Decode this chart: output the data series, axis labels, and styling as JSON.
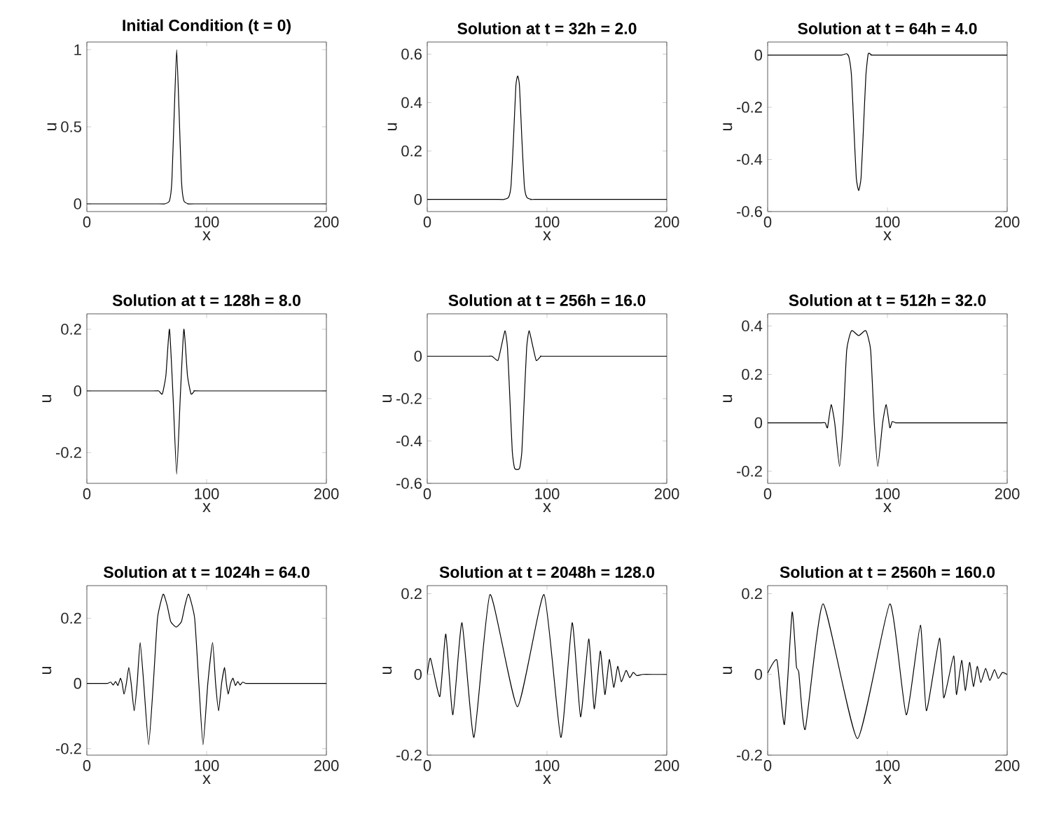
{
  "chart_data": [
    {
      "type": "line",
      "title": "Initial Condition (t = 0)",
      "xlabel": "x",
      "ylabel": "u",
      "color": "#000000",
      "xlim": [
        0,
        200
      ],
      "ylim": [
        -0.05,
        1.05
      ],
      "xticks": [
        0,
        100,
        200
      ],
      "yticks": [
        0,
        0.5,
        1
      ],
      "x": [
        0,
        60,
        65,
        69,
        71,
        73,
        75,
        77,
        79,
        81,
        85,
        90,
        200
      ],
      "values": [
        0,
        0,
        0,
        0.02,
        0.15,
        0.6,
        1.0,
        0.6,
        0.15,
        0.02,
        0,
        0,
        0
      ]
    },
    {
      "type": "line",
      "title": "Solution at t = 32h = 2.0",
      "xlabel": "x",
      "ylabel": "u",
      "color": "#000000",
      "xlim": [
        0,
        200
      ],
      "ylim": [
        -0.05,
        0.65
      ],
      "xticks": [
        0,
        100,
        200
      ],
      "yticks": [
        0,
        0.2,
        0.4,
        0.6
      ],
      "x": [
        0,
        59,
        64,
        68,
        70,
        72,
        74,
        75.5,
        77,
        79,
        81,
        83,
        87,
        92,
        200
      ],
      "values": [
        0,
        0,
        0,
        0.01,
        0.06,
        0.25,
        0.47,
        0.51,
        0.47,
        0.25,
        0.06,
        0.01,
        0,
        0,
        0
      ]
    },
    {
      "type": "line",
      "title": "Solution at t = 64h = 4.0",
      "xlabel": "x",
      "ylabel": "u",
      "color": "#000000",
      "xlim": [
        0,
        200
      ],
      "ylim": [
        -0.6,
        0.05
      ],
      "xticks": [
        0,
        100,
        200
      ],
      "yticks": [
        -0.6,
        -0.4,
        -0.2,
        0
      ],
      "x": [
        0,
        57,
        62,
        66,
        68,
        70,
        72,
        74,
        76,
        78,
        80,
        82,
        84,
        87,
        92,
        200
      ],
      "values": [
        0,
        0,
        0,
        0.005,
        -0.01,
        -0.08,
        -0.28,
        -0.47,
        -0.52,
        -0.47,
        -0.28,
        -0.08,
        0.005,
        0,
        0,
        0
      ]
    },
    {
      "type": "line",
      "title": "Solution at t = 128h = 8.0",
      "xlabel": "x",
      "ylabel": "u",
      "color": "#000000",
      "xlim": [
        0,
        200
      ],
      "ylim": [
        -0.3,
        0.25
      ],
      "xticks": [
        0,
        100,
        200
      ],
      "yticks": [
        -0.2,
        0,
        0.2
      ],
      "x": [
        0,
        55,
        60,
        63,
        66,
        69,
        72,
        75,
        78,
        81,
        84,
        87,
        90,
        95,
        200
      ],
      "values": [
        0,
        0,
        0,
        -0.01,
        0.05,
        0.2,
        -0.02,
        -0.27,
        -0.02,
        0.2,
        0.05,
        -0.01,
        0,
        0,
        0
      ]
    },
    {
      "type": "line",
      "title": "Solution at t = 256h = 16.0",
      "xlabel": "x",
      "ylabel": "u",
      "color": "#000000",
      "xlim": [
        0,
        200
      ],
      "ylim": [
        -0.6,
        0.2
      ],
      "xticks": [
        0,
        100,
        200
      ],
      "yticks": [
        -0.6,
        -0.4,
        -0.2,
        0
      ],
      "x": [
        0,
        49,
        54,
        59,
        62,
        65,
        67,
        69,
        71,
        73,
        77,
        79,
        81,
        83,
        85,
        88,
        91,
        95,
        100,
        200
      ],
      "values": [
        0,
        0,
        0,
        -0.02,
        0.05,
        0.12,
        0.04,
        -0.2,
        -0.45,
        -0.53,
        -0.53,
        -0.45,
        -0.2,
        0.04,
        0.12,
        0.05,
        -0.02,
        0,
        0,
        0
      ]
    },
    {
      "type": "line",
      "title": "Solution at t = 512h = 32.0",
      "xlabel": "x",
      "ylabel": "u",
      "color": "#000000",
      "xlim": [
        0,
        200
      ],
      "ylim": [
        -0.25,
        0.45
      ],
      "xticks": [
        0,
        100,
        200
      ],
      "yticks": [
        -0.2,
        0,
        0.2,
        0.4
      ],
      "x": [
        0,
        43,
        48,
        50,
        53,
        56,
        60,
        63,
        66,
        70,
        76,
        82,
        86,
        89,
        92,
        96,
        99,
        102,
        104,
        107,
        112,
        200
      ],
      "values": [
        0,
        0,
        0,
        -0.02,
        0.075,
        0,
        -0.18,
        0,
        0.3,
        0.38,
        0.36,
        0.38,
        0.3,
        0,
        -0.18,
        0,
        0.075,
        -0.02,
        0.005,
        0,
        0,
        0
      ]
    },
    {
      "type": "line",
      "title": "Solution at t = 1024h = 64.0",
      "xlabel": "x",
      "ylabel": "u",
      "color": "#000000",
      "xlim": [
        0,
        200
      ],
      "ylim": [
        -0.22,
        0.3
      ],
      "xticks": [
        0,
        100,
        200
      ],
      "yticks": [
        -0.2,
        0,
        0.2
      ],
      "x": [
        0,
        12,
        17,
        20,
        22,
        24,
        26,
        28,
        29.5,
        31,
        33,
        35,
        37,
        39.5,
        42,
        44.5,
        47.5,
        51.6,
        55.5,
        59,
        63.7,
        67,
        70,
        74.6,
        79,
        82,
        85,
        90,
        93.5,
        97,
        101,
        105,
        107.5,
        110,
        112.5,
        115,
        116.5,
        118,
        120,
        122,
        124,
        126,
        128,
        130,
        133,
        138,
        200
      ],
      "values": [
        0,
        0,
        0,
        0.004,
        -0.005,
        0.006,
        -0.006,
        0.016,
        0,
        -0.033,
        0,
        0.049,
        0,
        -0.084,
        0,
        0.126,
        0,
        -0.188,
        0,
        0.2,
        0.274,
        0.24,
        0.19,
        0.173,
        0.19,
        0.24,
        0.274,
        0.2,
        0,
        -0.188,
        0,
        0.126,
        0,
        -0.084,
        0,
        0.049,
        0,
        -0.033,
        0,
        0.016,
        -0.006,
        0.006,
        -0.005,
        0.004,
        0,
        0,
        0
      ]
    },
    {
      "type": "line",
      "title": "Solution at t = 2048h = 128.0",
      "xlabel": "x",
      "ylabel": "u",
      "color": "#000000",
      "xlim": [
        0,
        200
      ],
      "ylim": [
        -0.2,
        0.22
      ],
      "xticks": [
        0,
        100,
        200
      ],
      "yticks": [
        -0.2,
        0,
        0.2
      ],
      "x": [
        0,
        2.7,
        10.5,
        15.5,
        21.4,
        29,
        39,
        52.4,
        75.3,
        97.5,
        111.5,
        121,
        128,
        134.8,
        139.4,
        144.5,
        148.3,
        152,
        155.7,
        159,
        162,
        166,
        169,
        172,
        175,
        180,
        190,
        200
      ],
      "values": [
        0,
        0.04,
        -0.055,
        0.1,
        -0.1,
        0.128,
        -0.156,
        0.198,
        -0.08,
        0.198,
        -0.156,
        0.128,
        -0.105,
        0.088,
        -0.085,
        0.058,
        -0.05,
        0.037,
        -0.032,
        0.02,
        -0.018,
        0.01,
        -0.008,
        0.005,
        -0.003,
        0,
        0,
        0
      ]
    },
    {
      "type": "line",
      "title": "Solution at t = 2560h = 160.0",
      "xlabel": "x",
      "ylabel": "u",
      "color": "#000000",
      "xlim": [
        0,
        200
      ],
      "ylim": [
        -0.2,
        0.22
      ],
      "xticks": [
        0,
        100,
        200
      ],
      "yticks": [
        -0.2,
        0,
        0.2
      ],
      "x": [
        0,
        7.8,
        14,
        20.4,
        24,
        26,
        31.4,
        46.3,
        75,
        102,
        115.7,
        127.5,
        132.5,
        143.5,
        147,
        155.3,
        157.6,
        162,
        165,
        168.6,
        171.8,
        175,
        178,
        182,
        185.5,
        189.4,
        192.5,
        196,
        200
      ],
      "values": [
        0.003,
        0.035,
        -0.124,
        0.154,
        0.02,
        0.005,
        -0.136,
        0.175,
        -0.159,
        0.175,
        -0.1,
        0.122,
        -0.09,
        0.09,
        -0.058,
        0.046,
        -0.05,
        0.035,
        -0.04,
        0.03,
        -0.03,
        0.02,
        -0.02,
        0.015,
        -0.015,
        0.012,
        -0.01,
        0.005,
        0
      ]
    }
  ]
}
